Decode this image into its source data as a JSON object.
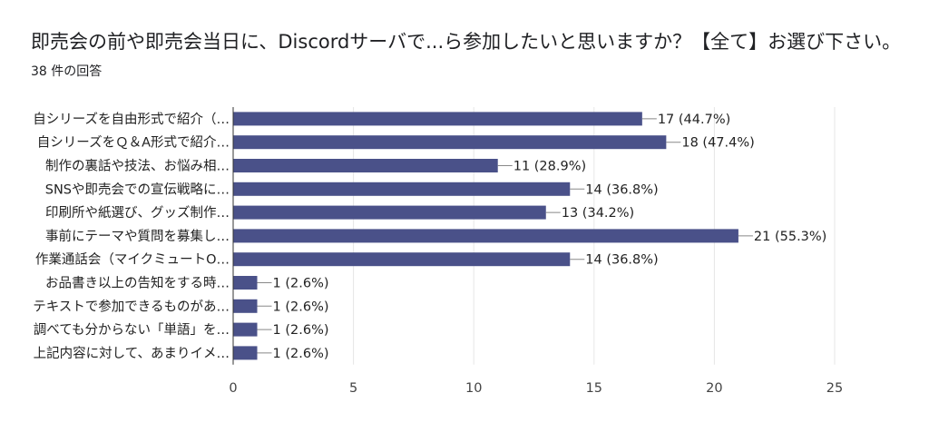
{
  "header": {
    "title": "即売会の前や即売会当日に、Discordサーバで...ら参加したいと思いますか？【全て】お選び下さい。",
    "response_count": "38 件の回答"
  },
  "colors": {
    "bar": "#4a5189",
    "grid": "#e6e6e6",
    "axis": "#333333"
  },
  "chart_data": {
    "type": "bar",
    "orientation": "horizontal",
    "title": "即売会の前や即売会当日に、Discordサーバで...ら参加したいと思いますか？【全て】お選び下さい。",
    "xlabel": "",
    "ylabel": "",
    "xlim": [
      0,
      25
    ],
    "xticks": [
      0,
      5,
      10,
      15,
      20,
      25
    ],
    "grid": true,
    "categories": [
      "自シリーズを自由形式で紹介（…",
      "自シリーズをＱ＆A形式で紹介…",
      "制作の裏話や技法、お悩み相…",
      "SNSや即売会での宣伝戦略に…",
      "印刷所や紙選び、グッズ制作…",
      "事前にテーマや質問を募集し…",
      "作業通話会（マイクミュートO…",
      "お品書き以上の告知をする時…",
      "テキストで参加できるものがあ…",
      "調べても分からない「単語」を…",
      "上記内容に対して、あまりイメ…"
    ],
    "values": [
      17,
      18,
      11,
      14,
      13,
      21,
      14,
      1,
      1,
      1,
      1
    ],
    "value_labels": [
      "17 (44.7%)",
      "18 (47.4%)",
      "11 (28.9%)",
      "14 (36.8%)",
      "13 (34.2%)",
      "21 (55.3%)",
      "14 (36.8%)",
      "1 (2.6%)",
      "1 (2.6%)",
      "1 (2.6%)",
      "1 (2.6%)"
    ]
  }
}
